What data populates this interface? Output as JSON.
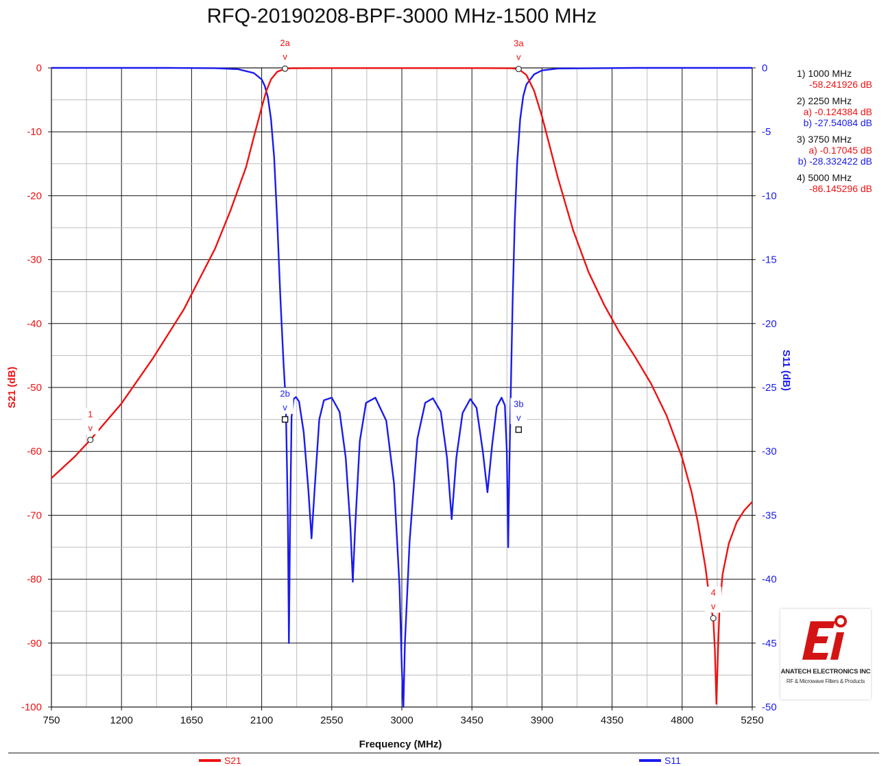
{
  "chart_data": {
    "type": "line",
    "title": "RFQ-20190208-BPF-3000 MHz-1500 MHz",
    "xlabel": "Frequency (MHz)",
    "ylabel_left": "S21 (dB)",
    "ylabel_right": "S11 (dB)",
    "xlim": [
      750,
      5250
    ],
    "ylim_left": [
      -100,
      0
    ],
    "ylim_right": [
      -50,
      0
    ],
    "x_ticks": [
      "750",
      "1200",
      "1650",
      "2100",
      "2550",
      "3000",
      "3450",
      "3900",
      "4350",
      "4800",
      "5250"
    ],
    "y_left_ticks": [
      "0",
      "-10",
      "-20",
      "-30",
      "-40",
      "-50",
      "-60",
      "-70",
      "-80",
      "-90",
      "-100"
    ],
    "y_right_ticks": [
      "0",
      "-5",
      "-10",
      "-15",
      "-20",
      "-25",
      "-30",
      "-35",
      "-40",
      "-45",
      "-50"
    ],
    "grid": true,
    "legend_position": "bottom",
    "series": [
      {
        "name": "S21",
        "axis": "left",
        "color": "#ee1111",
        "points": [
          [
            750,
            -64.2
          ],
          [
            900,
            -60.8
          ],
          [
            1000,
            -58.2
          ],
          [
            1200,
            -52.5
          ],
          [
            1400,
            -45.5
          ],
          [
            1600,
            -37.8
          ],
          [
            1800,
            -28.3
          ],
          [
            1900,
            -22.3
          ],
          [
            2000,
            -15.5
          ],
          [
            2050,
            -10.8
          ],
          [
            2100,
            -6.2
          ],
          [
            2130,
            -3.6
          ],
          [
            2160,
            -1.8
          ],
          [
            2200,
            -0.6
          ],
          [
            2250,
            -0.12
          ],
          [
            2300,
            -0.05
          ],
          [
            2500,
            -0.03
          ],
          [
            3000,
            -0.03
          ],
          [
            3500,
            -0.03
          ],
          [
            3700,
            -0.06
          ],
          [
            3750,
            -0.17
          ],
          [
            3800,
            -1.1
          ],
          [
            3850,
            -3.6
          ],
          [
            3900,
            -7.6
          ],
          [
            3950,
            -12.3
          ],
          [
            4000,
            -17.0
          ],
          [
            4100,
            -25.4
          ],
          [
            4200,
            -32.0
          ],
          [
            4300,
            -37.1
          ],
          [
            4400,
            -41.5
          ],
          [
            4500,
            -45.3
          ],
          [
            4600,
            -49.4
          ],
          [
            4700,
            -54.4
          ],
          [
            4800,
            -61.0
          ],
          [
            4860,
            -66.3
          ],
          [
            4900,
            -71.0
          ],
          [
            4950,
            -78.2
          ],
          [
            4980,
            -84.0
          ],
          [
            5000,
            -86.1
          ],
          [
            5010,
            -91.0
          ],
          [
            5020,
            -99.5
          ],
          [
            5030,
            -91.5
          ],
          [
            5040,
            -84.5
          ],
          [
            5060,
            -79.2
          ],
          [
            5100,
            -74.4
          ],
          [
            5150,
            -71.1
          ],
          [
            5200,
            -69.2
          ],
          [
            5250,
            -67.9
          ]
        ]
      },
      {
        "name": "S11",
        "axis": "right",
        "color": "#1a1aee",
        "points": [
          [
            750,
            0
          ],
          [
            1500,
            0
          ],
          [
            1800,
            -0.02
          ],
          [
            1950,
            -0.1
          ],
          [
            2050,
            -0.4
          ],
          [
            2100,
            -0.9
          ],
          [
            2120,
            -1.4
          ],
          [
            2140,
            -2.3
          ],
          [
            2160,
            -4.0
          ],
          [
            2180,
            -7.0
          ],
          [
            2200,
            -12.0
          ],
          [
            2220,
            -18.0
          ],
          [
            2240,
            -23.0
          ],
          [
            2255,
            -26.2
          ],
          [
            2268,
            -35.0
          ],
          [
            2275,
            -45.0
          ],
          [
            2283,
            -35.0
          ],
          [
            2292,
            -27.3
          ],
          [
            2305,
            -25.9
          ],
          [
            2320,
            -25.75
          ],
          [
            2340,
            -26.1
          ],
          [
            2370,
            -28.5
          ],
          [
            2400,
            -33.0
          ],
          [
            2420,
            -36.8
          ],
          [
            2440,
            -33.0
          ],
          [
            2470,
            -27.5
          ],
          [
            2500,
            -26.0
          ],
          [
            2550,
            -25.8
          ],
          [
            2600,
            -26.9
          ],
          [
            2640,
            -30.5
          ],
          [
            2670,
            -36.0
          ],
          [
            2685,
            -40.2
          ],
          [
            2700,
            -36.0
          ],
          [
            2730,
            -29.2
          ],
          [
            2770,
            -26.2
          ],
          [
            2830,
            -25.8
          ],
          [
            2900,
            -27.6
          ],
          [
            2950,
            -32.5
          ],
          [
            2985,
            -40.5
          ],
          [
            3000,
            -47.0
          ],
          [
            3010,
            -50.0
          ],
          [
            3020,
            -45.0
          ],
          [
            3050,
            -37.0
          ],
          [
            3100,
            -29.0
          ],
          [
            3150,
            -26.2
          ],
          [
            3200,
            -25.85
          ],
          [
            3250,
            -26.9
          ],
          [
            3290,
            -30.5
          ],
          [
            3320,
            -35.3
          ],
          [
            3350,
            -30.5
          ],
          [
            3390,
            -27.0
          ],
          [
            3440,
            -25.9
          ],
          [
            3480,
            -26.6
          ],
          [
            3520,
            -30.0
          ],
          [
            3550,
            -33.2
          ],
          [
            3580,
            -29.5
          ],
          [
            3610,
            -26.5
          ],
          [
            3640,
            -25.8
          ],
          [
            3662,
            -26.4
          ],
          [
            3674,
            -30.0
          ],
          [
            3683,
            -37.5
          ],
          [
            3691,
            -31.0
          ],
          [
            3700,
            -25.0
          ],
          [
            3712,
            -18.0
          ],
          [
            3725,
            -12.0
          ],
          [
            3740,
            -7.5
          ],
          [
            3760,
            -4.0
          ],
          [
            3780,
            -2.2
          ],
          [
            3800,
            -1.3
          ],
          [
            3850,
            -0.5
          ],
          [
            3900,
            -0.2
          ],
          [
            4000,
            -0.05
          ],
          [
            4500,
            0
          ],
          [
            5250,
            0
          ]
        ]
      }
    ],
    "markers": [
      {
        "label": "1",
        "series": "S21",
        "x": 1000,
        "y": -58.2
      },
      {
        "label": "2a",
        "series": "S21",
        "x": 2250,
        "y": -0.12
      },
      {
        "label": "3a",
        "series": "S21",
        "x": 3750,
        "y": -0.17
      },
      {
        "label": "4",
        "series": "S21",
        "x": 5000,
        "y": -86.1
      },
      {
        "label": "2b",
        "series": "S11",
        "x": 2250,
        "y": -27.5
      },
      {
        "label": "3b",
        "series": "S11",
        "x": 3750,
        "y": -28.3
      }
    ],
    "marker_arrow": "v",
    "readouts": [
      {
        "head": "1) 1000 MHz",
        "lines": [
          {
            "text": "-58.241926 dB",
            "color": "#ee1111"
          }
        ]
      },
      {
        "head": "2) 2250 MHz",
        "lines": [
          {
            "text": "a) -0.124384 dB",
            "color": "#ee1111"
          },
          {
            "text": "b) -27.54084 dB",
            "color": "#1a1aee"
          }
        ]
      },
      {
        "head": "3) 3750 MHz",
        "lines": [
          {
            "text": "a) -0.17045 dB",
            "color": "#ee1111"
          },
          {
            "text": "b) -28.332422 dB",
            "color": "#1a1aee"
          }
        ]
      },
      {
        "head": "4) 5000 MHz",
        "lines": [
          {
            "text": "-86.145296 dB",
            "color": "#ee1111"
          }
        ]
      }
    ]
  },
  "logo": {
    "mark": "EI",
    "company": "ANATECH ELECTRONICS INC",
    "tagline": "RF & Microwave Filters & Products"
  }
}
